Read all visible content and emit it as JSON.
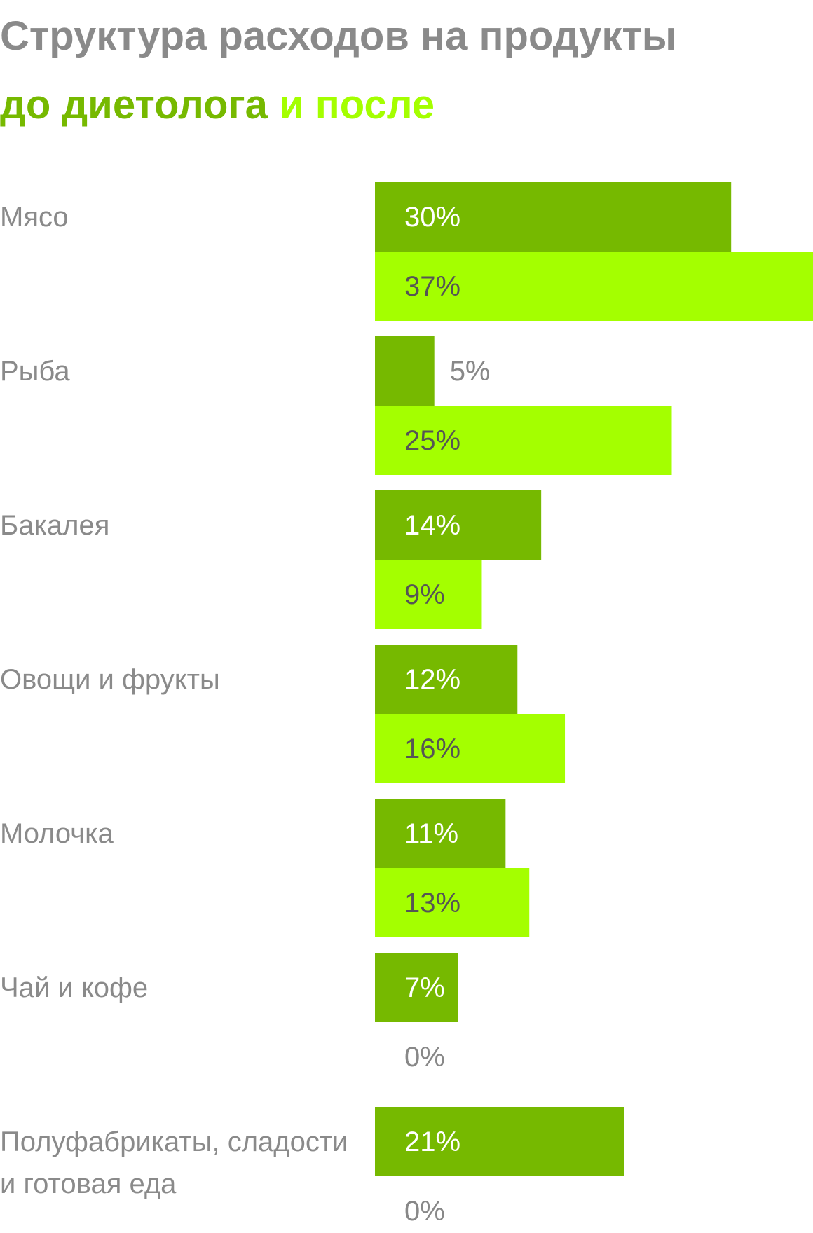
{
  "chart_data": {
    "type": "bar",
    "orientation": "horizontal",
    "title": "Структура расходов на продукты",
    "categories": [
      "Мясо",
      "Рыба",
      "Бакалея",
      "Овощи и фрукты",
      "Молочка",
      "Чай и кофе",
      "Полуфабрикаты, сладости и готовая еда"
    ],
    "series": [
      {
        "name": "до диетолога",
        "color": "#76b900",
        "values": [
          30,
          5,
          14,
          12,
          11,
          7,
          21
        ],
        "value_labels": [
          "30%",
          "5%",
          "14%",
          "12%",
          "11%",
          "7%",
          "21%"
        ]
      },
      {
        "name": "и после",
        "color": "#a4ff00",
        "values": [
          37,
          25,
          9,
          16,
          13,
          0,
          0
        ],
        "value_labels": [
          "37%",
          "25%",
          "9%",
          "16%",
          "13%",
          "0%",
          "0%"
        ]
      }
    ]
  }
}
